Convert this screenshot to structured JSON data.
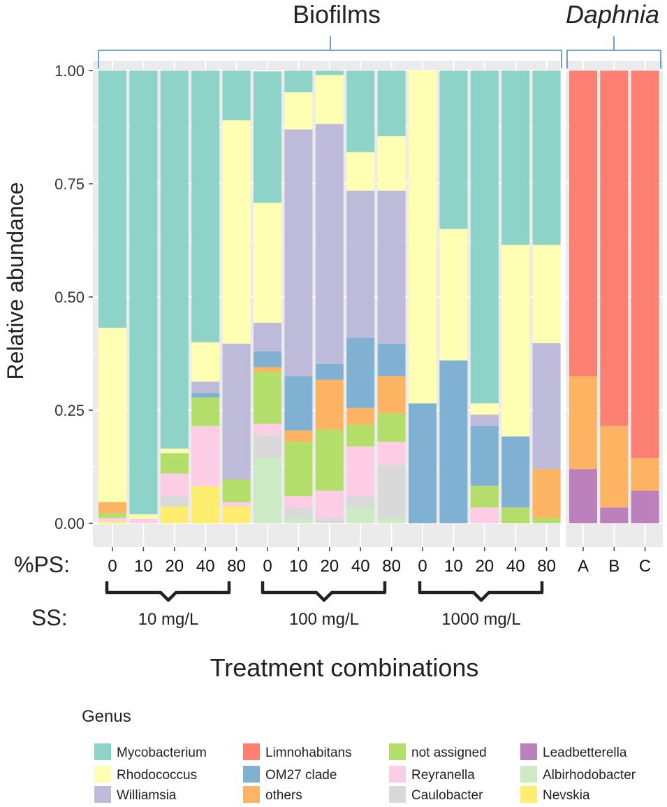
{
  "chart_data": {
    "type": "bar",
    "stacked": true,
    "ylabel": "Relative abundance",
    "xlabel": "Treatment combinations",
    "ylim": [
      0,
      1
    ],
    "yticks": [
      "0.00",
      "0.25",
      "0.50",
      "0.75",
      "1.00"
    ],
    "panels": [
      {
        "title": "Biofilms",
        "italic": false,
        "categories": [
          "0",
          "10",
          "20",
          "40",
          "80",
          "0",
          "10",
          "20",
          "40",
          "80",
          "0",
          "10",
          "20",
          "40",
          "80"
        ]
      },
      {
        "title": "Daphnia",
        "italic": true,
        "categories": [
          "A",
          "B",
          "C"
        ]
      }
    ],
    "x_prefix_label": "%PS:",
    "group_prefix_label": "SS:",
    "groups": [
      "10 mg/L",
      "100 mg/L",
      "1000 mg/L"
    ],
    "legend_title": "Genus",
    "genera": [
      {
        "name": "Mycobacterium",
        "color": "#8DD3C7"
      },
      {
        "name": "Rhodococcus",
        "color": "#FFFFB3"
      },
      {
        "name": "Williamsia",
        "color": "#BEBADA"
      },
      {
        "name": "Limnohabitans",
        "color": "#FB8072"
      },
      {
        "name": "OM27 clade",
        "color": "#80B1D3"
      },
      {
        "name": "others",
        "color": "#FDB462"
      },
      {
        "name": "not assigned",
        "color": "#B3DE69"
      },
      {
        "name": "Reyranella",
        "color": "#FCCDE5"
      },
      {
        "name": "Caulobacter",
        "color": "#D9D9D9"
      },
      {
        "name": "Leadbetterella",
        "color": "#BC80BD"
      },
      {
        "name": "Albirhodobacter",
        "color": "#CCEBC5"
      },
      {
        "name": "Nevskia",
        "color": "#FFED6F"
      }
    ],
    "stack_order_bottom_to_top": [
      "Leadbetterella",
      "Nevskia",
      "Albirhodobacter",
      "Caulobacter",
      "Reyranella",
      "not assigned",
      "others",
      "OM27 clade",
      "Williamsia",
      "Limnohabitans",
      "Rhodococcus",
      "Mycobacterium"
    ],
    "bars": [
      {
        "panel": 0,
        "label": "0",
        "group": "10 mg/L",
        "values": {
          "Nevskia": 0.005,
          "Reyranella": 0.007,
          "not assigned": 0.01,
          "others": 0.025,
          "Rhodococcus": 0.385,
          "Mycobacterium": 0.568
        }
      },
      {
        "panel": 0,
        "label": "10",
        "group": "10 mg/L",
        "values": {
          "Reyranella": 0.01,
          "Rhodococcus": 0.01,
          "Mycobacterium": 0.98
        }
      },
      {
        "panel": 0,
        "label": "20",
        "group": "10 mg/L",
        "values": {
          "Nevskia": 0.037,
          "Caulobacter": 0.023,
          "Reyranella": 0.05,
          "not assigned": 0.045,
          "Rhodococcus": 0.01,
          "Mycobacterium": 0.835
        }
      },
      {
        "panel": 0,
        "label": "40",
        "group": "10 mg/L",
        "values": {
          "Nevskia": 0.082,
          "Reyranella": 0.133,
          "not assigned": 0.063,
          "OM27 clade": 0.01,
          "Williamsia": 0.025,
          "Rhodococcus": 0.087,
          "Mycobacterium": 0.6
        }
      },
      {
        "panel": 0,
        "label": "80",
        "group": "10 mg/L",
        "values": {
          "Nevskia": 0.037,
          "Reyranella": 0.01,
          "not assigned": 0.05,
          "Williamsia": 0.3,
          "Rhodococcus": 0.493,
          "Mycobacterium": 0.11
        }
      },
      {
        "panel": 0,
        "label": "0",
        "group": "100 mg/L",
        "values": {
          "Albirhodobacter": 0.145,
          "Caulobacter": 0.05,
          "Reyranella": 0.025,
          "not assigned": 0.115,
          "others": 0.01,
          "OM27 clade": 0.035,
          "Williamsia": 0.063,
          "Rhodococcus": 0.265,
          "Mycobacterium": 0.29
        }
      },
      {
        "panel": 0,
        "label": "10",
        "group": "100 mg/L",
        "values": {
          "Albirhodobacter": 0.01,
          "Caulobacter": 0.025,
          "Reyranella": 0.025,
          "not assigned": 0.12,
          "others": 0.025,
          "OM27 clade": 0.12,
          "Williamsia": 0.545,
          "Rhodococcus": 0.082,
          "Mycobacterium": 0.048
        }
      },
      {
        "panel": 0,
        "label": "20",
        "group": "100 mg/L",
        "values": {
          "Caulobacter": 0.012,
          "Reyranella": 0.06,
          "not assigned": 0.135,
          "others": 0.11,
          "OM27 clade": 0.035,
          "Williamsia": 0.53,
          "Rhodococcus": 0.108,
          "Mycobacterium": 0.01
        }
      },
      {
        "panel": 0,
        "label": "40",
        "group": "100 mg/L",
        "values": {
          "Albirhodobacter": 0.035,
          "Caulobacter": 0.025,
          "Reyranella": 0.11,
          "not assigned": 0.048,
          "others": 0.037,
          "OM27 clade": 0.155,
          "Williamsia": 0.325,
          "Rhodococcus": 0.085,
          "Mycobacterium": 0.18
        }
      },
      {
        "panel": 0,
        "label": "80",
        "group": "100 mg/L",
        "values": {
          "Albirhodobacter": 0.01,
          "Caulobacter": 0.12,
          "Reyranella": 0.05,
          "not assigned": 0.063,
          "others": 0.082,
          "OM27 clade": 0.072,
          "Williamsia": 0.338,
          "Rhodococcus": 0.12,
          "Mycobacterium": 0.145
        }
      },
      {
        "panel": 0,
        "label": "0",
        "group": "1000 mg/L",
        "values": {
          "OM27 clade": 0.265,
          "Rhodococcus": 0.735
        }
      },
      {
        "panel": 0,
        "label": "10",
        "group": "1000 mg/L",
        "values": {
          "OM27 clade": 0.36,
          "Rhodococcus": 0.29,
          "Mycobacterium": 0.35
        }
      },
      {
        "panel": 0,
        "label": "20",
        "group": "1000 mg/L",
        "values": {
          "Reyranella": 0.035,
          "not assigned": 0.048,
          "OM27 clade": 0.132,
          "Williamsia": 0.025,
          "Rhodococcus": 0.025,
          "Mycobacterium": 0.735
        }
      },
      {
        "panel": 0,
        "label": "40",
        "group": "1000 mg/L",
        "values": {
          "not assigned": 0.035,
          "OM27 clade": 0.157,
          "Rhodococcus": 0.423,
          "Mycobacterium": 0.385
        }
      },
      {
        "panel": 0,
        "label": "80",
        "group": "1000 mg/L",
        "values": {
          "not assigned": 0.012,
          "others": 0.108,
          "Williamsia": 0.278,
          "Rhodococcus": 0.217,
          "Mycobacterium": 0.385
        }
      },
      {
        "panel": 1,
        "label": "A",
        "group": "",
        "values": {
          "Leadbetterella": 0.12,
          "others": 0.205,
          "Limnohabitans": 0.675
        }
      },
      {
        "panel": 1,
        "label": "B",
        "group": "",
        "values": {
          "Leadbetterella": 0.035,
          "others": 0.18,
          "Limnohabitans": 0.785
        }
      },
      {
        "panel": 1,
        "label": "C",
        "group": "",
        "values": {
          "Leadbetterella": 0.072,
          "others": 0.072,
          "Limnohabitans": 0.856
        }
      }
    ]
  }
}
